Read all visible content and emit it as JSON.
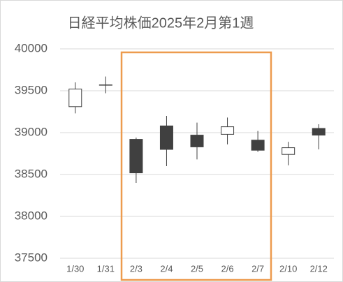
{
  "chart_data": {
    "type": "candlestick",
    "title": "日経平均株価2025年2月第1週",
    "categories": [
      "1/30",
      "1/31",
      "2/3",
      "2/4",
      "2/5",
      "2/6",
      "2/7",
      "2/10",
      "2/12"
    ],
    "open": [
      39310,
      39570,
      38920,
      39080,
      38970,
      38980,
      38910,
      38740,
      39050
    ],
    "high": [
      39600,
      39670,
      38940,
      39200,
      39120,
      39180,
      39020,
      38890,
      39100
    ],
    "low": [
      39230,
      39470,
      38400,
      38600,
      38680,
      38860,
      38770,
      38610,
      38800
    ],
    "close": [
      39520,
      39570,
      38520,
      38800,
      38830,
      39070,
      38790,
      38820,
      38970
    ],
    "up_color": "#ffffff",
    "down_color": "#404040",
    "line_color": "#404040",
    "ylim": [
      37500,
      40000
    ],
    "yticks": [
      37500,
      38000,
      38500,
      39000,
      39500,
      40000
    ],
    "grid": true
  }
}
